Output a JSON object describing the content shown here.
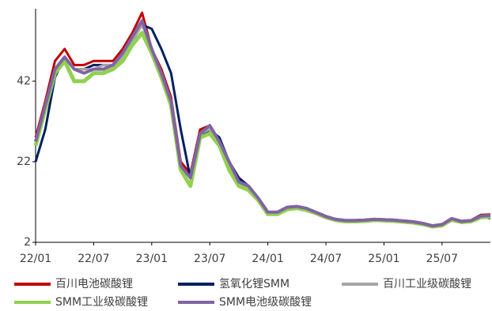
{
  "chart_data": {
    "type": "line",
    "categories": [
      "22/01",
      null,
      null,
      null,
      null,
      null,
      "22/07",
      null,
      null,
      null,
      null,
      null,
      "23/01",
      null,
      null,
      null,
      null,
      null,
      "23/07",
      null,
      null,
      null,
      null,
      null,
      "24/01",
      null,
      null,
      null,
      null,
      null,
      "24/07",
      null,
      null,
      null,
      null,
      null,
      "25/01",
      null,
      null,
      null,
      null,
      null,
      "25/07",
      null,
      null,
      null,
      null,
      null
    ],
    "ylim": [
      2,
      60
    ],
    "yticks": [
      2,
      22,
      42
    ],
    "series": [
      {
        "name": "百川电池碳酸锂",
        "color": "#c00000",
        "values": [
          28,
          37,
          47,
          50,
          46,
          46,
          47,
          47,
          47,
          50,
          54,
          59,
          50,
          45,
          38,
          22,
          19,
          30,
          31,
          27,
          22,
          18,
          16,
          13,
          9.5,
          9.5,
          10.8,
          11,
          10.5,
          9.5,
          8.5,
          7.8,
          7.5,
          7.5,
          7.6,
          7.8,
          7.7,
          7.6,
          7.4,
          7.2,
          6.8,
          6.2,
          6.5,
          8,
          7.3,
          7.5,
          8.8,
          8.9
        ]
      },
      {
        "name": "氢氧化锂SMM",
        "color": "#002060",
        "values": [
          22,
          30,
          43,
          48,
          45,
          45,
          46,
          46,
          46,
          48,
          52,
          56,
          55,
          50,
          44,
          30,
          18,
          28,
          30,
          28,
          22,
          18,
          16,
          13,
          9.3,
          9.3,
          10.4,
          10.8,
          10.4,
          9.5,
          8.5,
          7.6,
          7.4,
          7.4,
          7.5,
          7.7,
          7.6,
          7.5,
          7.3,
          7.1,
          6.7,
          6.0,
          6.3,
          7.8,
          7.2,
          7.4,
          8.4,
          8.0
        ]
      },
      {
        "name": "百川工业级碳酸锂",
        "color": "#a6a6a6",
        "values": [
          26,
          35,
          45,
          48,
          45,
          45,
          45,
          46,
          46,
          48,
          52,
          56,
          50,
          44,
          37,
          21,
          18,
          29,
          30,
          27,
          21,
          17,
          15,
          12.5,
          9.2,
          9.2,
          10.5,
          10.7,
          10.2,
          9.3,
          8.3,
          7.6,
          7.3,
          7.3,
          7.4,
          7.6,
          7.5,
          7.4,
          7.2,
          7.0,
          6.6,
          6.0,
          6.3,
          7.8,
          7.1,
          7.3,
          8.4,
          8.6
        ]
      },
      {
        "name": "SMM工业级碳酸锂",
        "color": "#92d050",
        "values": [
          26,
          35,
          44,
          47,
          42,
          42,
          44,
          44,
          45,
          47,
          51,
          54,
          49,
          43,
          36,
          20,
          16,
          28,
          29,
          26,
          20,
          16,
          15,
          12.5,
          9.0,
          9.0,
          10.2,
          10.5,
          10.0,
          9.2,
          8.2,
          7.5,
          7.2,
          7.2,
          7.3,
          7.5,
          7.4,
          7.3,
          7.1,
          6.9,
          6.5,
          5.9,
          6.2,
          7.6,
          7.0,
          7.2,
          8.2,
          8.4
        ]
      },
      {
        "name": "SMM电池级碳酸锂",
        "color": "#8064a2",
        "values": [
          27,
          36,
          45,
          48,
          45,
          44,
          45,
          45,
          46,
          49,
          53,
          57,
          50,
          44,
          37,
          21,
          18,
          29,
          31,
          27,
          22,
          17,
          16,
          13,
          9.5,
          9.5,
          10.7,
          10.9,
          10.4,
          9.4,
          8.4,
          7.7,
          7.4,
          7.4,
          7.5,
          7.7,
          7.6,
          7.5,
          7.3,
          7.1,
          6.7,
          6.1,
          6.4,
          7.9,
          7.2,
          7.4,
          8.5,
          8.7
        ]
      }
    ]
  }
}
